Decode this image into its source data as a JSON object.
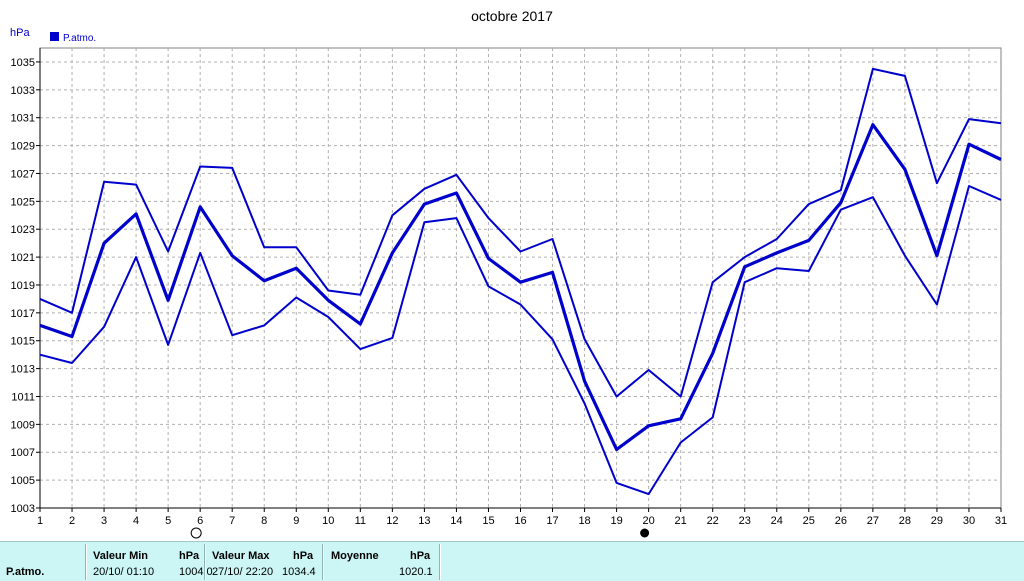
{
  "chart_data": {
    "type": "line",
    "title": "octobre 2017",
    "ylabel": "hPa",
    "legend": "P.atmo.",
    "legend_placement": "top-left",
    "grid": true,
    "ylim": [
      1003,
      1036
    ],
    "yticks": [
      1003,
      1005,
      1007,
      1009,
      1011,
      1013,
      1015,
      1017,
      1019,
      1021,
      1023,
      1025,
      1027,
      1029,
      1031,
      1033,
      1035
    ],
    "x": [
      1,
      2,
      3,
      4,
      5,
      6,
      7,
      8,
      9,
      10,
      11,
      12,
      13,
      14,
      15,
      16,
      17,
      18,
      19,
      20,
      21,
      22,
      23,
      24,
      25,
      26,
      27,
      28,
      29,
      30,
      31
    ],
    "series": [
      {
        "values": [
          1018.0,
          1017.0,
          1026.4,
          1026.2,
          1021.4,
          1027.5,
          1027.4,
          1021.7,
          1021.7,
          1018.6,
          1018.3,
          1024.0,
          1025.9,
          1026.9,
          1023.8,
          1021.4,
          1022.3,
          1015.1,
          1011.0,
          1012.9,
          1011.0,
          1019.2,
          1021.0,
          1022.3,
          1024.8,
          1025.8,
          1034.5,
          1034.0,
          1026.3,
          1030.9,
          1030.6
        ]
      },
      {
        "values": [
          1016.1,
          1015.3,
          1022.0,
          1024.1,
          1017.9,
          1024.6,
          1021.1,
          1019.3,
          1020.2,
          1017.9,
          1016.2,
          1021.3,
          1024.8,
          1025.6,
          1020.9,
          1019.2,
          1019.9,
          1012.1,
          1007.2,
          1008.9,
          1009.4,
          1014.1,
          1020.3,
          1021.3,
          1022.2,
          1024.9,
          1030.5,
          1027.3,
          1021.1,
          1029.1,
          1028.0
        ]
      },
      {
        "values": [
          1014.0,
          1013.4,
          1016.0,
          1021.0,
          1014.7,
          1021.3,
          1015.4,
          1016.1,
          1018.1,
          1016.7,
          1014.4,
          1015.2,
          1023.5,
          1023.8,
          1018.9,
          1017.6,
          1015.1,
          1010.5,
          1004.8,
          1004.0,
          1007.7,
          1009.5,
          1019.2,
          1020.2,
          1020.0,
          1024.4,
          1025.3,
          1021.1,
          1017.6,
          1026.1,
          1025.1
        ]
      }
    ],
    "markers": [
      {
        "type": "open-circle",
        "x": 6
      },
      {
        "type": "filled-circle",
        "x": 20
      }
    ]
  },
  "colors": {
    "series": "#0000cc",
    "grid": "#b0b0b0",
    "stats_bg": "#ccf5f5"
  },
  "stats": {
    "row_label": "P.atmo.",
    "min_title": "Valeur Min",
    "min_unit": "hPa",
    "min_datetime": "20/10/  01:10",
    "min_value": "1004.0",
    "max_title": "Valeur Max",
    "max_unit": "hPa",
    "max_datetime": "27/10/  22:20",
    "max_value": "1034.4",
    "avg_title": "Moyenne",
    "avg_unit": "hPa",
    "avg_value": "1020.1"
  }
}
